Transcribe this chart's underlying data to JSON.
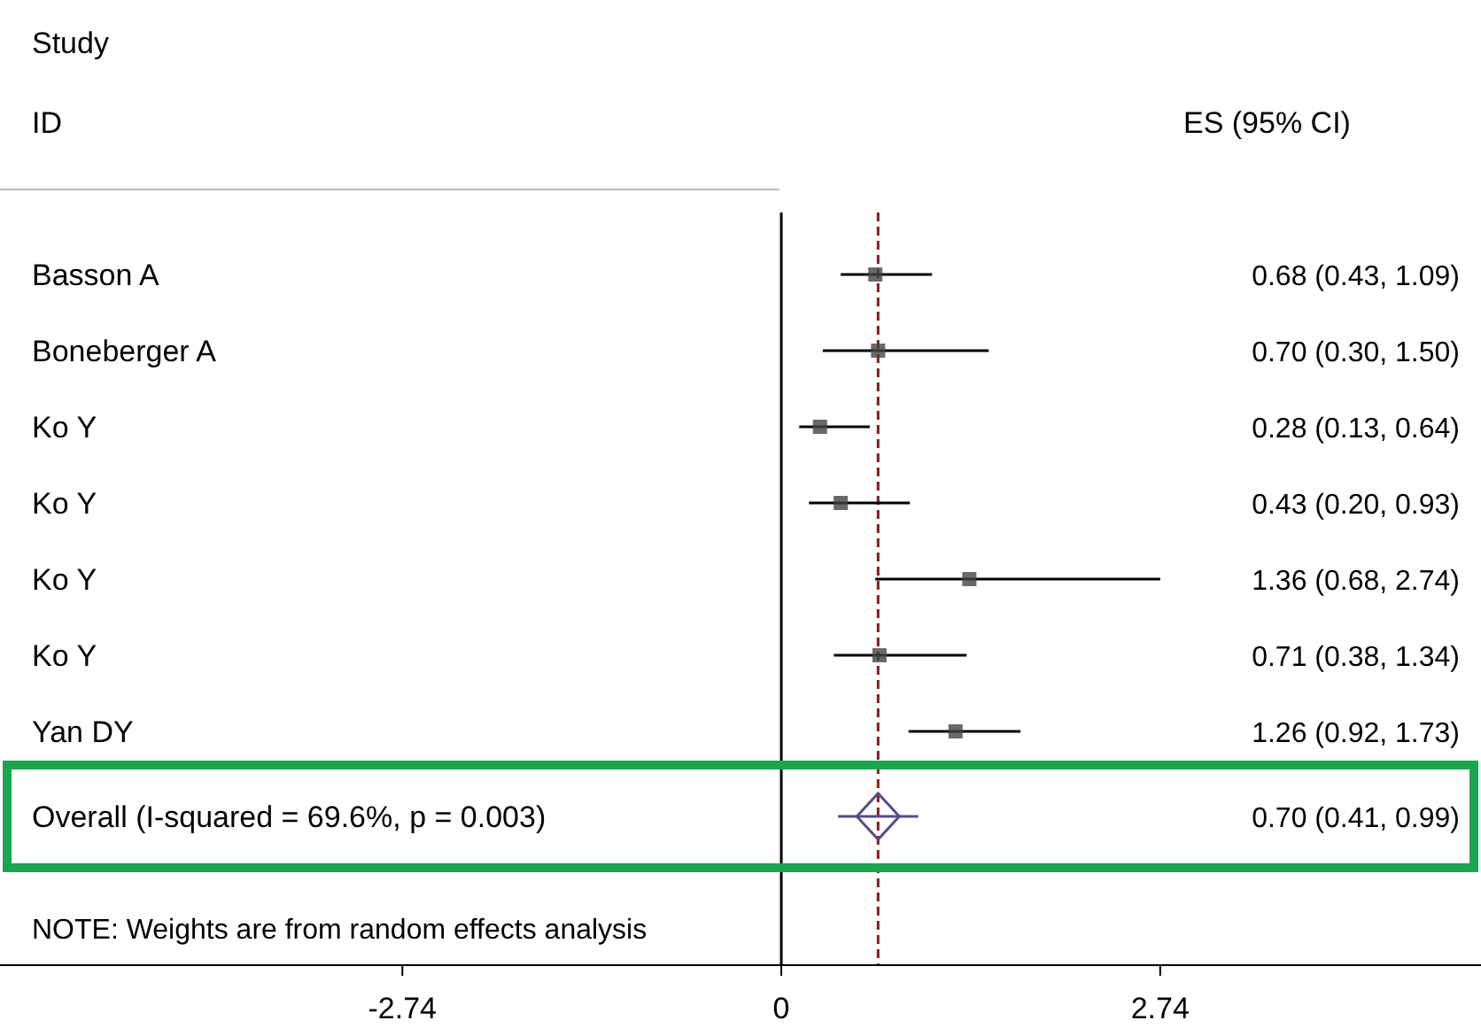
{
  "chart_data": {
    "type": "scatter",
    "orientation": "horizontal",
    "categories": [
      "Basson A",
      "Boneberger A",
      "Ko Y",
      "Ko Y",
      "Ko Y",
      "Ko Y",
      "Yan DY",
      "Overall  (I-squared = 69.6%, p = 0.003)"
    ],
    "series": [
      {
        "marker": "square",
        "color": "#444444",
        "values": [
          0.68,
          0.7,
          0.28,
          0.43,
          1.36,
          0.71,
          1.26,
          null
        ],
        "errors": [
          [
            0.43,
            1.09
          ],
          [
            0.3,
            1.5
          ],
          [
            0.13,
            0.64
          ],
          [
            0.2,
            0.93
          ],
          [
            0.68,
            2.74
          ],
          [
            0.38,
            1.34
          ],
          [
            0.92,
            1.73
          ],
          null
        ]
      },
      {
        "marker": "diamond",
        "color": "#5a4a8a",
        "values": [
          null,
          null,
          null,
          null,
          null,
          null,
          null,
          0.7
        ],
        "errors": [
          null,
          null,
          null,
          null,
          null,
          null,
          null,
          [
            0.41,
            0.99
          ]
        ]
      }
    ],
    "xlim": [
      -5.65,
      5.06
    ],
    "xticks": [
      -2.74,
      0,
      2.74
    ],
    "ref_lines": [
      {
        "axis": "x",
        "value": 0,
        "color": "#000000",
        "line_style": "solid"
      },
      {
        "axis": "x",
        "value": 0.7,
        "color": "#8b1a1a",
        "line_style": "dashed"
      }
    ],
    "annotations": [
      "Study",
      "ID",
      "ES (95% CI)",
      "NOTE: Weights are from random effects analysis",
      "0.68 (0.43, 1.09)",
      "0.70 (0.30, 1.50)",
      "0.28 (0.13, 0.64)",
      "0.43 (0.20, 0.93)",
      "1.36 (0.68, 2.74)",
      "0.71 (0.38, 1.34)",
      "1.26 (0.92, 1.73)",
      "0.70 (0.41, 0.99)"
    ],
    "grid": false
  }
}
